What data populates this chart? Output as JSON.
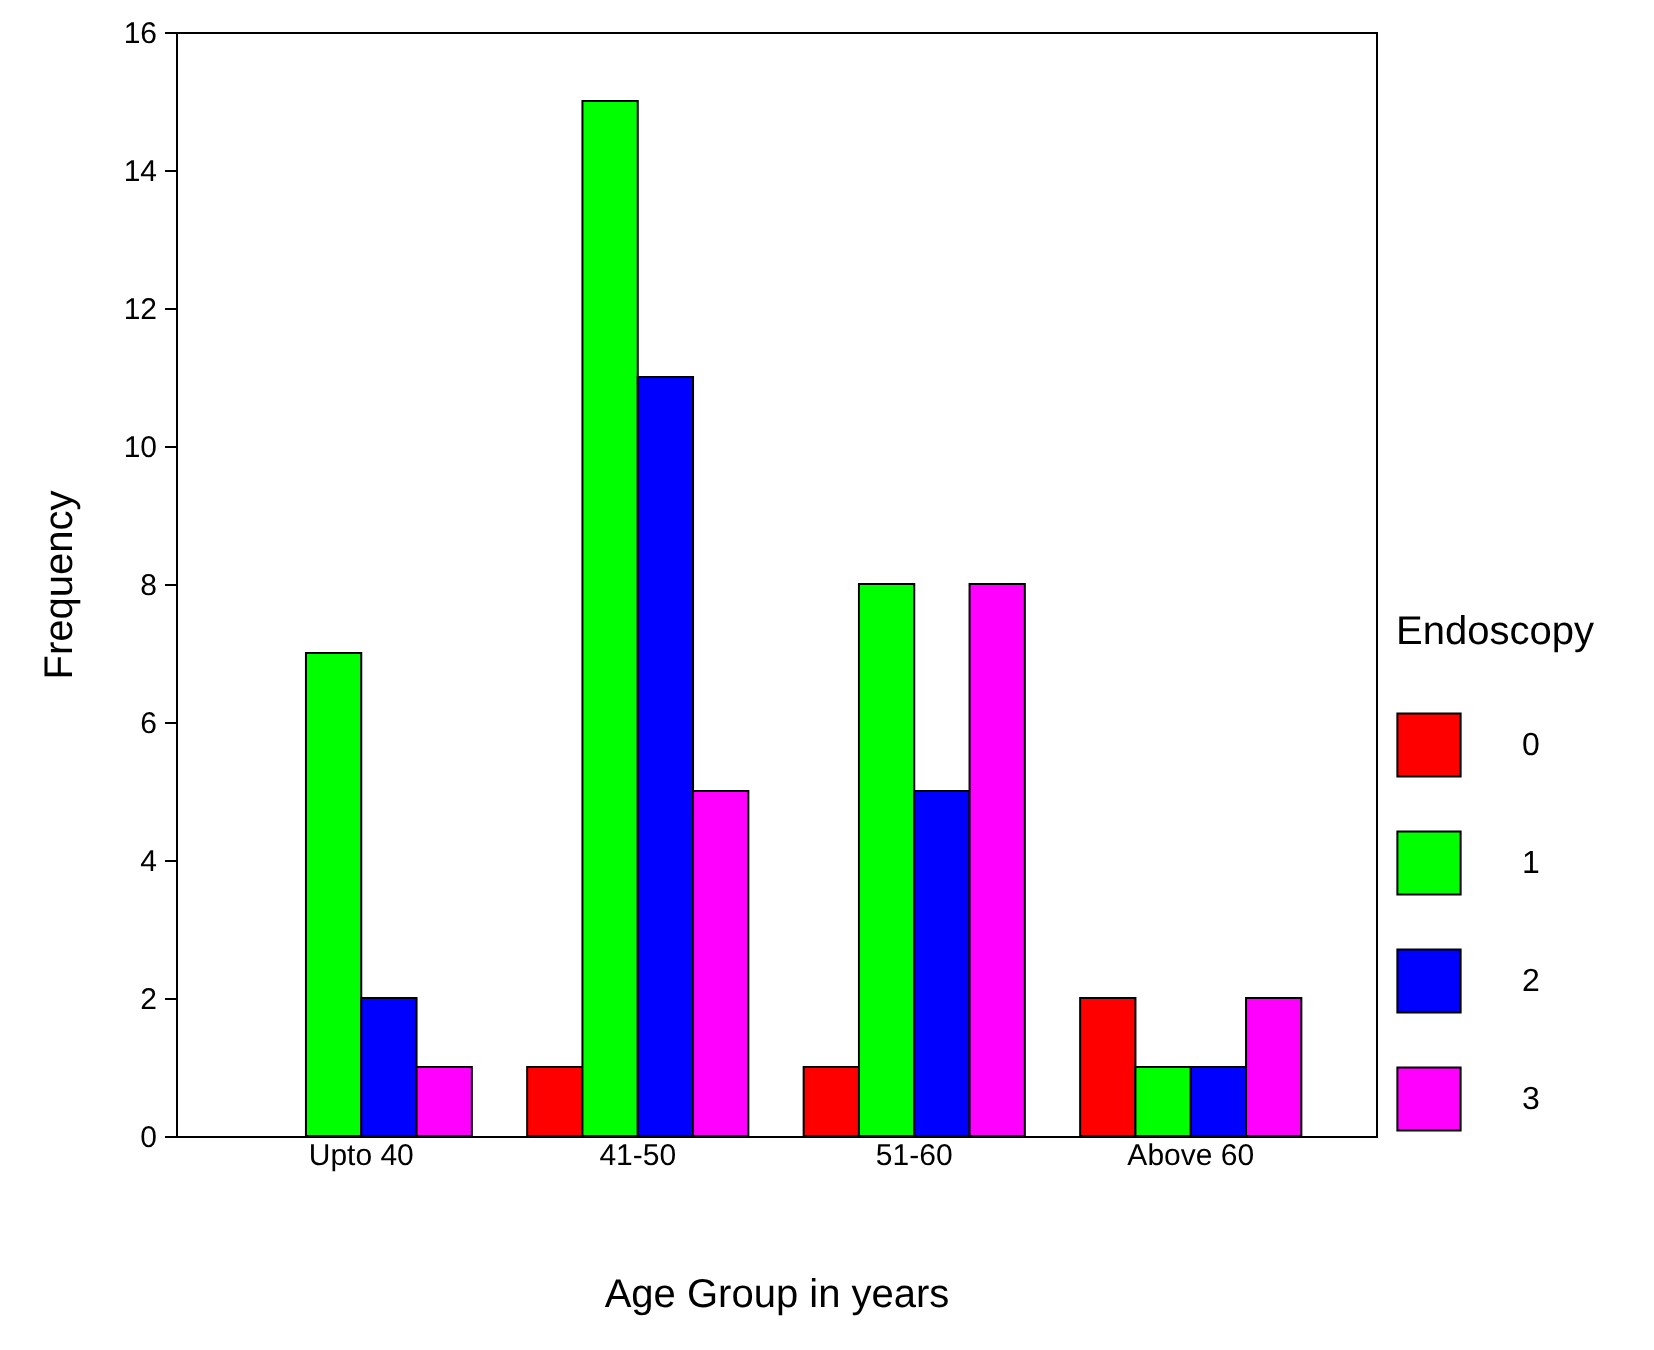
{
  "chart_data": {
    "type": "bar",
    "xlabel": "Age Group in years",
    "ylabel": "Frequency",
    "legend_title": "Endoscopy",
    "legend": "right",
    "grid": false,
    "categories": [
      "Upto 40",
      "41-50",
      "51-60",
      "Above 60"
    ],
    "ylim": [
      0,
      16
    ],
    "yticks": [
      0,
      2,
      4,
      6,
      8,
      10,
      12,
      14,
      16
    ],
    "series": [
      {
        "name": "0",
        "color": "#ff0000",
        "values": [
          0,
          1,
          1,
          2
        ]
      },
      {
        "name": "1",
        "color": "#00ff00",
        "values": [
          7,
          15,
          8,
          1
        ]
      },
      {
        "name": "2",
        "color": "#0000ff",
        "values": [
          2,
          11,
          5,
          1
        ]
      },
      {
        "name": "3",
        "color": "#ff00ff",
        "values": [
          1,
          5,
          8,
          2
        ]
      }
    ]
  }
}
